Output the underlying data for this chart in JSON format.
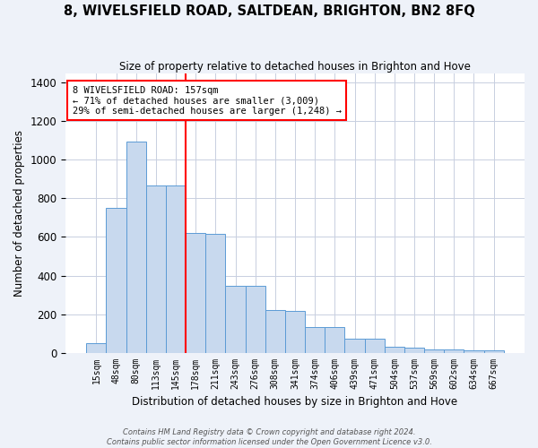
{
  "title": "8, WIVELSFIELD ROAD, SALTDEAN, BRIGHTON, BN2 8FQ",
  "subtitle": "Size of property relative to detached houses in Brighton and Hove",
  "xlabel": "Distribution of detached houses by size in Brighton and Hove",
  "ylabel": "Number of detached properties",
  "footer_line1": "Contains HM Land Registry data © Crown copyright and database right 2024.",
  "footer_line2": "Contains public sector information licensed under the Open Government Licence v3.0.",
  "bar_labels": [
    "15sqm",
    "48sqm",
    "80sqm",
    "113sqm",
    "145sqm",
    "178sqm",
    "211sqm",
    "243sqm",
    "276sqm",
    "308sqm",
    "341sqm",
    "374sqm",
    "406sqm",
    "439sqm",
    "471sqm",
    "504sqm",
    "537sqm",
    "569sqm",
    "602sqm",
    "634sqm",
    "667sqm"
  ],
  "bar_values": [
    50,
    750,
    1095,
    865,
    865,
    620,
    615,
    345,
    345,
    220,
    215,
    135,
    135,
    70,
    70,
    30,
    28,
    18,
    18,
    10,
    10
  ],
  "ylim": [
    0,
    1450
  ],
  "yticks": [
    0,
    200,
    400,
    600,
    800,
    1000,
    1200,
    1400
  ],
  "bar_color": "#c8d9ee",
  "bar_edge_color": "#5b9bd5",
  "annotation_text": "8 WIVELSFIELD ROAD: 157sqm\n← 71% of detached houses are smaller (3,009)\n29% of semi-detached houses are larger (1,248) →",
  "annotation_box_color": "white",
  "annotation_box_edge_color": "red",
  "vline_x_index": 4.5,
  "vline_color": "red",
  "background_color": "#eef2f9",
  "plot_background_color": "white",
  "grid_color": "#c8cfe0"
}
